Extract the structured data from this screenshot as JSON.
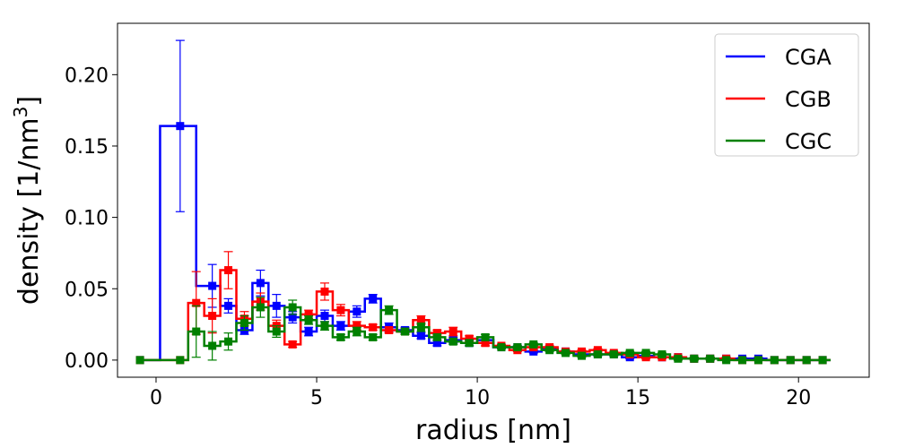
{
  "chart_data": {
    "type": "line",
    "style": "step-histogram-with-error-bars",
    "xlabel": "radius [nm]",
    "ylabel": "density [1/nm",
    "ylabel_sup": "3",
    "ylabel_end": "]",
    "xlim": [
      -1.2,
      22.2
    ],
    "ylim": [
      -0.012,
      0.236
    ],
    "xticks": [
      0,
      5,
      10,
      15,
      20
    ],
    "xtick_labels": [
      "0",
      "5",
      "10",
      "15",
      "20"
    ],
    "yticks": [
      0.0,
      0.05,
      0.1,
      0.15,
      0.2
    ],
    "ytick_labels": [
      "0.00",
      "0.05",
      "0.10",
      "0.15",
      "0.20"
    ],
    "legend": {
      "position": "top-right",
      "entries": [
        "CGA",
        "CGB",
        "CGC"
      ]
    },
    "series": [
      {
        "name": "CGA",
        "color": "#0000ff",
        "x": [
          -0.5,
          0.75,
          1.75,
          2.25,
          2.75,
          3.25,
          3.75,
          4.25,
          4.75,
          5.25,
          5.75,
          6.25,
          6.75,
          7.25,
          7.75,
          8.25,
          8.75,
          9.25,
          9.75,
          10.25,
          10.75,
          11.25,
          11.75,
          12.25,
          12.75,
          13.25,
          13.75,
          14.25,
          14.75,
          15.25,
          15.75,
          16.25,
          16.75,
          17.25,
          17.75,
          18.25,
          18.75,
          19.25,
          19.75,
          20.25,
          20.75
        ],
        "y": [
          0.0,
          0.164,
          0.052,
          0.038,
          0.021,
          0.054,
          0.038,
          0.03,
          0.02,
          0.031,
          0.024,
          0.034,
          0.043,
          0.023,
          0.021,
          0.017,
          0.012,
          0.014,
          0.012,
          0.014,
          0.009,
          0.009,
          0.006,
          0.008,
          0.006,
          0.004,
          0.004,
          0.004,
          0.002,
          0.003,
          0.002,
          0.002,
          0.001,
          0.001,
          0.001,
          0.001,
          0.001,
          0.0,
          0.0,
          0.0,
          0.0
        ],
        "yerr": [
          0.0,
          0.06,
          0.015,
          0.005,
          0.003,
          0.009,
          0.008,
          0.004,
          0.003,
          0.004,
          0.003,
          0.004,
          0.003,
          0.003,
          0.002,
          0.002,
          0.002,
          0.002,
          0.002,
          0.002,
          0.001,
          0.001,
          0.001,
          0.001,
          0.001,
          0.001,
          0.001,
          0.001,
          0.001,
          0.001,
          0.001,
          0.001,
          0.001,
          0.001,
          0.001,
          0.001,
          0.001,
          0.0,
          0.0,
          0.0,
          0.0
        ]
      },
      {
        "name": "CGB",
        "color": "#ff0000",
        "x": [
          -0.5,
          0.75,
          1.25,
          1.75,
          2.25,
          2.75,
          3.25,
          3.75,
          4.25,
          4.75,
          5.25,
          5.75,
          6.25,
          6.75,
          7.25,
          7.75,
          8.25,
          8.75,
          9.25,
          9.75,
          10.25,
          10.75,
          11.25,
          11.75,
          12.25,
          12.75,
          13.25,
          13.75,
          14.25,
          14.75,
          15.25,
          15.75,
          16.25,
          16.75,
          17.25,
          17.75,
          18.25,
          18.75,
          19.25,
          19.75,
          20.25,
          20.75
        ],
        "y": [
          0.0,
          0.0,
          0.04,
          0.031,
          0.063,
          0.029,
          0.041,
          0.024,
          0.011,
          0.032,
          0.048,
          0.035,
          0.024,
          0.023,
          0.021,
          0.02,
          0.028,
          0.019,
          0.02,
          0.015,
          0.012,
          0.01,
          0.007,
          0.009,
          0.009,
          0.006,
          0.006,
          0.007,
          0.005,
          0.004,
          0.002,
          0.002,
          0.002,
          0.001,
          0.001,
          0.001,
          0.0,
          0.0,
          0.0,
          0.0,
          0.0,
          0.0
        ],
        "yerr": [
          0.0,
          0.0,
          0.022,
          0.012,
          0.013,
          0.005,
          0.006,
          0.004,
          0.002,
          0.003,
          0.006,
          0.004,
          0.003,
          0.002,
          0.002,
          0.002,
          0.003,
          0.002,
          0.003,
          0.002,
          0.002,
          0.001,
          0.001,
          0.001,
          0.001,
          0.001,
          0.001,
          0.001,
          0.001,
          0.001,
          0.001,
          0.001,
          0.001,
          0.001,
          0.001,
          0.001,
          0.0,
          0.0,
          0.0,
          0.0,
          0.0,
          0.0
        ]
      },
      {
        "name": "CGC",
        "color": "#008000",
        "x": [
          -0.5,
          0.75,
          1.25,
          1.75,
          2.25,
          2.75,
          3.25,
          3.75,
          4.25,
          4.75,
          5.25,
          5.75,
          6.25,
          6.75,
          7.25,
          7.75,
          8.25,
          8.75,
          9.25,
          9.75,
          10.25,
          10.75,
          11.25,
          11.75,
          12.25,
          12.75,
          13.25,
          13.75,
          14.25,
          14.75,
          15.25,
          15.75,
          16.25,
          16.75,
          17.25,
          17.75,
          18.25,
          18.75,
          19.25,
          19.75,
          20.25,
          20.75
        ],
        "y": [
          0.0,
          0.0,
          0.02,
          0.01,
          0.013,
          0.026,
          0.037,
          0.02,
          0.037,
          0.028,
          0.024,
          0.016,
          0.02,
          0.016,
          0.035,
          0.02,
          0.023,
          0.016,
          0.013,
          0.012,
          0.016,
          0.009,
          0.009,
          0.011,
          0.007,
          0.005,
          0.003,
          0.004,
          0.004,
          0.005,
          0.005,
          0.004,
          0.001,
          0.001,
          0.001,
          0.0,
          0.0,
          0.0,
          0.0,
          0.0,
          0.0,
          0.0
        ],
        "yerr": [
          0.0,
          0.0,
          0.018,
          0.01,
          0.006,
          0.005,
          0.007,
          0.004,
          0.005,
          0.003,
          0.003,
          0.002,
          0.003,
          0.002,
          0.003,
          0.002,
          0.003,
          0.002,
          0.002,
          0.002,
          0.002,
          0.001,
          0.001,
          0.001,
          0.001,
          0.001,
          0.001,
          0.001,
          0.001,
          0.001,
          0.001,
          0.001,
          0.001,
          0.001,
          0.001,
          0.0,
          0.0,
          0.0,
          0.0,
          0.0,
          0.0,
          0.0
        ]
      }
    ]
  }
}
